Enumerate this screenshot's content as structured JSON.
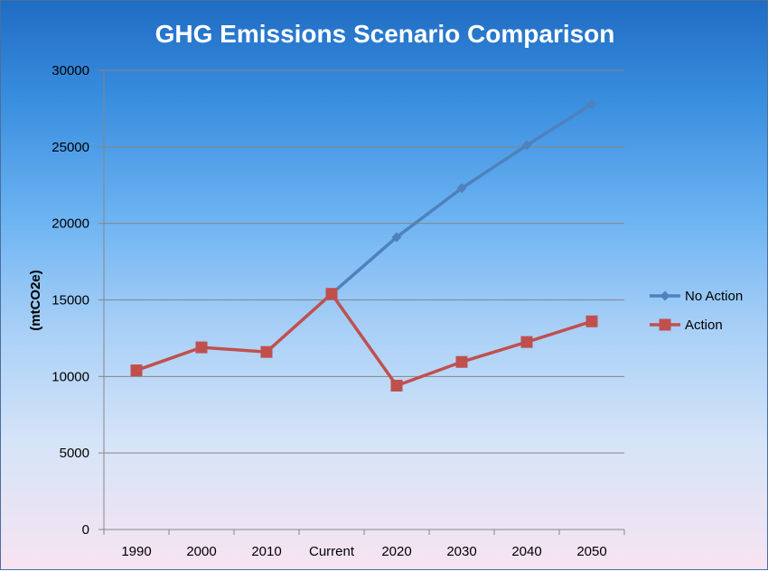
{
  "chart_data": {
    "type": "line",
    "title": "GHG Emissions Scenario Comparison",
    "xlabel": "",
    "ylabel": "(mtCO2e)",
    "categories": [
      "1990",
      "2000",
      "2010",
      "Current",
      "2020",
      "2030",
      "2040",
      "2050"
    ],
    "ylim": [
      0,
      30000
    ],
    "yticks": [
      0,
      5000,
      10000,
      15000,
      20000,
      25000,
      30000
    ],
    "grid": true,
    "legend_position": "right",
    "series": [
      {
        "name": "No Action",
        "color": "#4f81bd",
        "marker": "diamond",
        "values": [
          null,
          null,
          null,
          15400,
          19100,
          22300,
          25100,
          27800
        ]
      },
      {
        "name": "Action",
        "color": "#c0504d",
        "marker": "square",
        "values": [
          10400,
          11900,
          11600,
          15400,
          9400,
          10950,
          12250,
          13600
        ]
      }
    ]
  }
}
